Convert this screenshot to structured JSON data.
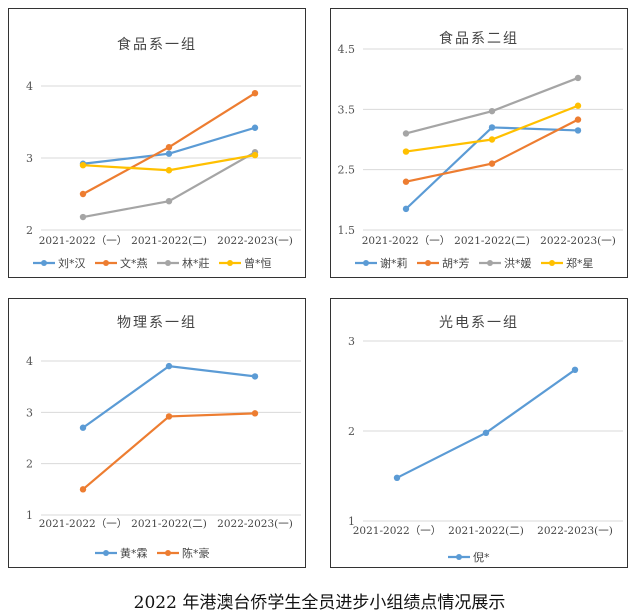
{
  "caption": "2022 年港澳台侨学生全员进步小组绩点情况展示",
  "chart_data": [
    {
      "type": "line",
      "title": "食品系一组",
      "categories": [
        "2021-2022（一）",
        "2021-2022(二)",
        "2022-2023(一)"
      ],
      "ylim": [
        2,
        4
      ],
      "yticks": [
        "2",
        "3",
        "4"
      ],
      "grid": true,
      "legend": "bottom",
      "series": [
        {
          "name": "刘*汉",
          "color": "#5B9BD5",
          "values": [
            2.92,
            3.06,
            3.42
          ]
        },
        {
          "name": "文*燕",
          "color": "#ED7D31",
          "values": [
            2.5,
            3.15,
            3.9
          ]
        },
        {
          "name": "林*莊",
          "color": "#A5A5A5",
          "values": [
            2.18,
            2.4,
            3.08
          ]
        },
        {
          "name": "曾*恒",
          "color": "#FFC000",
          "values": [
            2.9,
            2.83,
            3.04
          ]
        }
      ]
    },
    {
      "type": "line",
      "title": "食品系二组",
      "categories": [
        "2021-2022（一）",
        "2021-2022(二)",
        "2022-2023(一)"
      ],
      "ylim": [
        1.5,
        4.5
      ],
      "yticks": [
        "1.5",
        "2.5",
        "3.5",
        "4.5"
      ],
      "grid": true,
      "legend": "bottom",
      "series": [
        {
          "name": "谢*莉",
          "color": "#5B9BD5",
          "values": [
            1.85,
            3.2,
            3.15
          ]
        },
        {
          "name": "胡*芳",
          "color": "#ED7D31",
          "values": [
            2.3,
            2.6,
            3.33
          ]
        },
        {
          "name": "洪*媛",
          "color": "#A5A5A5",
          "values": [
            3.1,
            3.47,
            4.02
          ]
        },
        {
          "name": "郑*星",
          "color": "#FFC000",
          "values": [
            2.8,
            3.0,
            3.56
          ]
        }
      ]
    },
    {
      "type": "line",
      "title": "物理系一组",
      "categories": [
        "2021-2022（一）",
        "2021-2022(二)",
        "2022-2023(一)"
      ],
      "ylim": [
        1,
        4
      ],
      "yticks": [
        "1",
        "2",
        "3",
        "4"
      ],
      "grid": true,
      "legend": "bottom",
      "series": [
        {
          "name": "黄*霖",
          "color": "#5B9BD5",
          "values": [
            2.7,
            3.9,
            3.7
          ]
        },
        {
          "name": "陈*豪",
          "color": "#ED7D31",
          "values": [
            1.5,
            2.92,
            2.98
          ]
        }
      ]
    },
    {
      "type": "line",
      "title": "光电系一组",
      "categories": [
        "2021-2022（一）",
        "2021-2022(二)",
        "2022-2023(一)"
      ],
      "ylim": [
        1,
        3
      ],
      "yticks": [
        "1",
        "2",
        "3"
      ],
      "grid": true,
      "legend": "bottom",
      "series": [
        {
          "name": "倪*",
          "color": "#5B9BD5",
          "values": [
            1.48,
            1.98,
            2.68
          ]
        }
      ]
    }
  ]
}
